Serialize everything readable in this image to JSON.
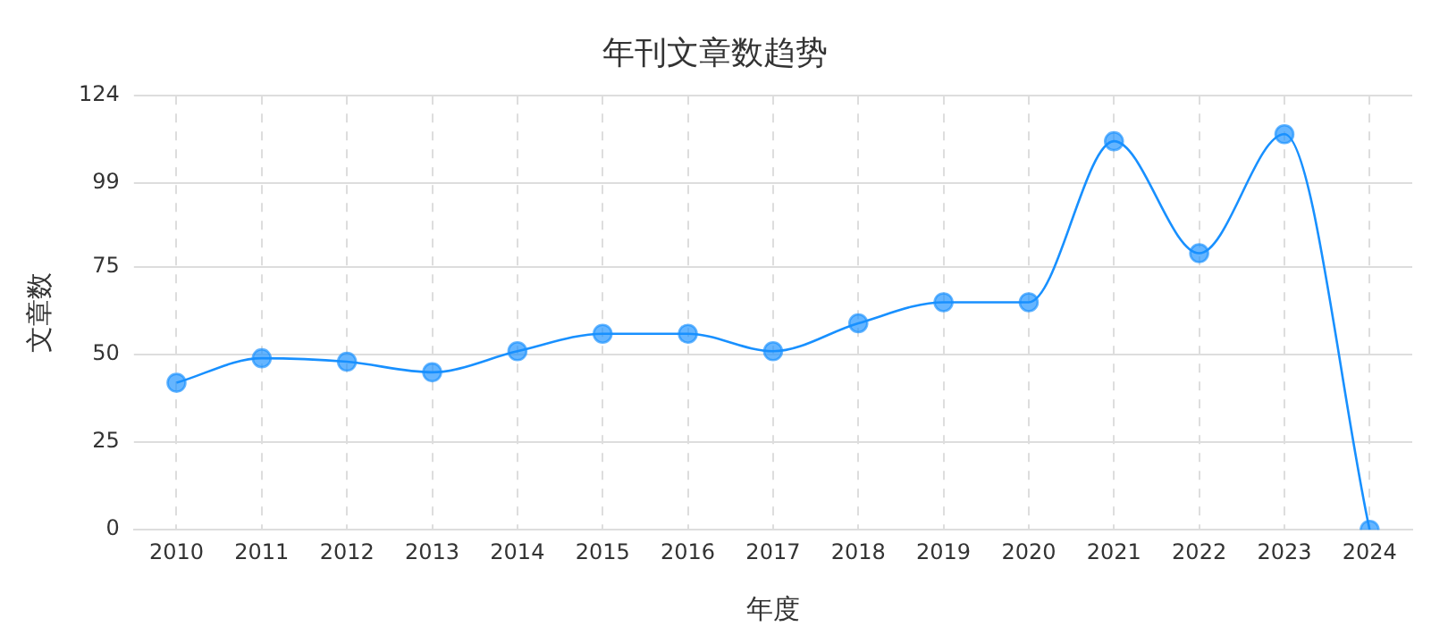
{
  "chart_data": {
    "type": "line",
    "title": "年刊文章数趋势",
    "xlabel": "年度",
    "ylabel": "文章数",
    "categories": [
      "2010",
      "2011",
      "2012",
      "2013",
      "2014",
      "2015",
      "2016",
      "2017",
      "2018",
      "2019",
      "2020",
      "2021",
      "2022",
      "2023",
      "2024"
    ],
    "series": [
      {
        "color": "#1890ff",
        "values": [
          42,
          49,
          48,
          45,
          51,
          56,
          56,
          51,
          59,
          65,
          65,
          111,
          79,
          113,
          0
        ]
      }
    ],
    "ylim": [
      0,
      124
    ],
    "yticks": [
      0,
      25,
      50,
      75,
      99,
      124
    ],
    "grid": true,
    "legend": false,
    "marker": "circle",
    "line_style": "solid"
  }
}
